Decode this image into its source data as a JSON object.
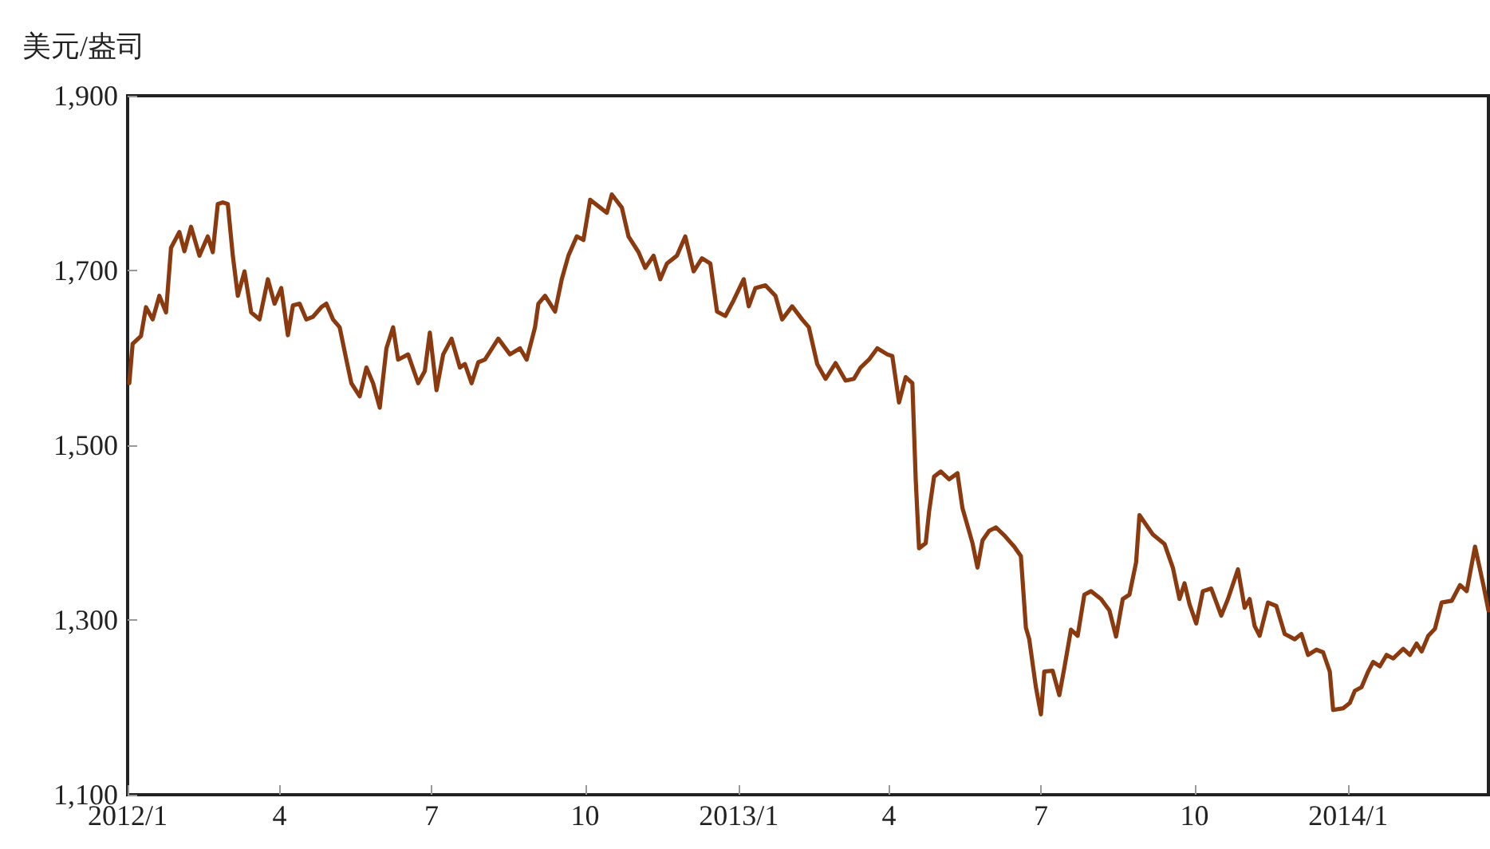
{
  "chart_data": {
    "type": "line",
    "ylabel": "美元/盎司",
    "xlim": [
      "2012-01-01",
      "2014-03-26"
    ],
    "ylim": [
      1100,
      1900
    ],
    "xticks": [
      {
        "value": "2012-01-01",
        "label": "2012/1"
      },
      {
        "value": "2012-04-01",
        "label": "4"
      },
      {
        "value": "2012-07-01",
        "label": "7"
      },
      {
        "value": "2012-10-01",
        "label": "10"
      },
      {
        "value": "2013-01-01",
        "label": "2013/1"
      },
      {
        "value": "2013-04-01",
        "label": "4"
      },
      {
        "value": "2013-07-01",
        "label": "7"
      },
      {
        "value": "2013-10-01",
        "label": "10"
      },
      {
        "value": "2014-01-01",
        "label": "2014/1"
      }
    ],
    "yticks": [
      {
        "value": 1100,
        "label": "1,100"
      },
      {
        "value": 1300,
        "label": "1,300"
      },
      {
        "value": 1500,
        "label": "1,500"
      },
      {
        "value": 1700,
        "label": "1,700"
      },
      {
        "value": 1900,
        "label": "1,900"
      }
    ],
    "series": [
      {
        "color": "#8b3a0f",
        "x": [
          "2012-01-02",
          "2012-01-04",
          "2012-01-09",
          "2012-01-12",
          "2012-01-16",
          "2012-01-20",
          "2012-01-24",
          "2012-01-27",
          "2012-02-01",
          "2012-02-04",
          "2012-02-08",
          "2012-02-13",
          "2012-02-18",
          "2012-02-21",
          "2012-02-24",
          "2012-02-27",
          "2012-03-01",
          "2012-03-04",
          "2012-03-07",
          "2012-03-11",
          "2012-03-15",
          "2012-03-20",
          "2012-03-25",
          "2012-03-29",
          "2012-04-02",
          "2012-04-06",
          "2012-04-09",
          "2012-04-13",
          "2012-04-17",
          "2012-04-21",
          "2012-04-26",
          "2012-04-29",
          "2012-05-03",
          "2012-05-07",
          "2012-05-11",
          "2012-05-14",
          "2012-05-19",
          "2012-05-23",
          "2012-05-27",
          "2012-05-31",
          "2012-06-04",
          "2012-06-08",
          "2012-06-11",
          "2012-06-17",
          "2012-06-23",
          "2012-06-27",
          "2012-06-30",
          "2012-07-04",
          "2012-07-08",
          "2012-07-13",
          "2012-07-18",
          "2012-07-21",
          "2012-07-25",
          "2012-07-29",
          "2012-08-02",
          "2012-08-10",
          "2012-08-17",
          "2012-08-23",
          "2012-08-27",
          "2012-09-01",
          "2012-09-03",
          "2012-09-07",
          "2012-09-13",
          "2012-09-17",
          "2012-09-21",
          "2012-09-26",
          "2012-09-30",
          "2012-10-04",
          "2012-10-10",
          "2012-10-14",
          "2012-10-17",
          "2012-10-23",
          "2012-10-27",
          "2012-11-02",
          "2012-11-06",
          "2012-11-11",
          "2012-11-15",
          "2012-11-19",
          "2012-11-25",
          "2012-11-30",
          "2012-12-05",
          "2012-12-10",
          "2012-12-15",
          "2012-12-19",
          "2012-12-24",
          "2012-12-29",
          "2013-01-04",
          "2013-01-07",
          "2013-01-11",
          "2013-01-17",
          "2013-01-23",
          "2013-01-27",
          "2013-02-02",
          "2013-02-08",
          "2013-02-12",
          "2013-02-17",
          "2013-02-22",
          "2013-02-28",
          "2013-03-06",
          "2013-03-11",
          "2013-03-15",
          "2013-03-20",
          "2013-03-25",
          "2013-03-31",
          "2013-04-03",
          "2013-04-07",
          "2013-04-11",
          "2013-04-15",
          "2013-04-17",
          "2013-04-19",
          "2013-04-23",
          "2013-04-25",
          "2013-04-28",
          "2013-05-02",
          "2013-05-07",
          "2013-05-12",
          "2013-05-15",
          "2013-05-21",
          "2013-05-24",
          "2013-05-27",
          "2013-05-31",
          "2013-06-04",
          "2013-06-09",
          "2013-06-15",
          "2013-06-19",
          "2013-06-22",
          "2013-06-24",
          "2013-06-28",
          "2013-07-01",
          "2013-07-03",
          "2013-07-08",
          "2013-07-12",
          "2013-07-15",
          "2013-07-19",
          "2013-07-23",
          "2013-07-27",
          "2013-07-31",
          "2013-08-06",
          "2013-08-11",
          "2013-08-15",
          "2013-08-19",
          "2013-08-23",
          "2013-08-27",
          "2013-08-29",
          "2013-09-06",
          "2013-09-13",
          "2013-09-18",
          "2013-09-22",
          "2013-09-25",
          "2013-09-28",
          "2013-10-02",
          "2013-10-06",
          "2013-10-11",
          "2013-10-17",
          "2013-10-21",
          "2013-10-27",
          "2013-10-31",
          "2013-11-03",
          "2013-11-06",
          "2013-11-09",
          "2013-11-14",
          "2013-11-19",
          "2013-11-24",
          "2013-11-30",
          "2013-12-04",
          "2013-12-08",
          "2013-12-13",
          "2013-12-17",
          "2013-12-21",
          "2013-12-23",
          "2013-12-29",
          "2014-01-02",
          "2014-01-05",
          "2014-01-09",
          "2014-01-13",
          "2014-01-16",
          "2014-01-20",
          "2014-01-24",
          "2014-01-28",
          "2014-02-03",
          "2014-02-07",
          "2014-02-11",
          "2014-02-14",
          "2014-02-18",
          "2014-02-22",
          "2014-02-26",
          "2014-03-04",
          "2014-03-09",
          "2014-03-13",
          "2014-03-18",
          "2014-03-23",
          "2014-03-26"
        ],
        "values": [
          1571,
          1616,
          1625,
          1658,
          1644,
          1671,
          1652,
          1726,
          1744,
          1722,
          1750,
          1717,
          1739,
          1721,
          1776,
          1778,
          1776,
          1717,
          1671,
          1699,
          1652,
          1644,
          1690,
          1662,
          1680,
          1626,
          1660,
          1662,
          1644,
          1647,
          1658,
          1662,
          1644,
          1635,
          1598,
          1571,
          1556,
          1589,
          1571,
          1543,
          1611,
          1635,
          1598,
          1604,
          1571,
          1585,
          1629,
          1563,
          1604,
          1622,
          1589,
          1593,
          1571,
          1595,
          1598,
          1622,
          1604,
          1611,
          1598,
          1635,
          1662,
          1671,
          1653,
          1690,
          1717,
          1739,
          1735,
          1781,
          1772,
          1766,
          1787,
          1772,
          1739,
          1721,
          1703,
          1717,
          1690,
          1708,
          1717,
          1739,
          1699,
          1714,
          1708,
          1653,
          1648,
          1666,
          1690,
          1659,
          1680,
          1683,
          1671,
          1644,
          1659,
          1644,
          1635,
          1593,
          1576,
          1594,
          1574,
          1576,
          1589,
          1598,
          1611,
          1604,
          1602,
          1549,
          1578,
          1571,
          1461,
          1382,
          1388,
          1424,
          1464,
          1470,
          1461,
          1468,
          1428,
          1388,
          1360,
          1391,
          1402,
          1406,
          1397,
          1384,
          1373,
          1291,
          1278,
          1223,
          1192,
          1241,
          1242,
          1214,
          1245,
          1289,
          1282,
          1329,
          1333,
          1324,
          1311,
          1281,
          1324,
          1329,
          1366,
          1420,
          1398,
          1387,
          1360,
          1324,
          1342,
          1318,
          1296,
          1333,
          1336,
          1305,
          1324,
          1358,
          1314,
          1324,
          1293,
          1282,
          1320,
          1316,
          1284,
          1278,
          1284,
          1260,
          1266,
          1263,
          1241,
          1197,
          1199,
          1205,
          1219,
          1223,
          1241,
          1252,
          1247,
          1260,
          1256,
          1267,
          1260,
          1273,
          1264,
          1282,
          1290,
          1320,
          1322,
          1340,
          1333,
          1384,
          1340,
          1311
        ]
      }
    ]
  }
}
